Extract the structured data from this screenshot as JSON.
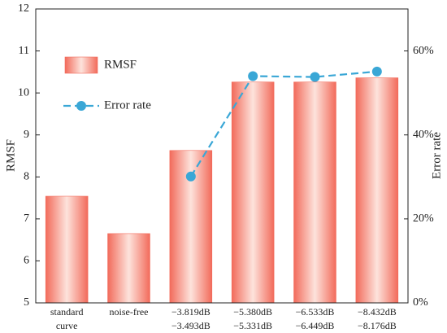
{
  "chart_data": {
    "type": "bar",
    "categories": [
      [
        "standard",
        "curve"
      ],
      [
        "noise-free"
      ],
      [
        "−3.819dB",
        "−3.493dB"
      ],
      [
        "−5.380dB",
        "−5.331dB"
      ],
      [
        "−6.533dB",
        "−6.449dB"
      ],
      [
        "−8.432dB",
        "−8.176dB"
      ]
    ],
    "series": [
      {
        "name": "RMSF",
        "type": "bar",
        "color": "#f26b5b",
        "values": [
          7.54,
          6.65,
          8.63,
          10.26,
          10.26,
          10.36
        ]
      },
      {
        "name": "Error rate",
        "type": "line",
        "axis": "y2",
        "color": "#3aa7d6",
        "values": [
          null,
          null,
          30.1,
          54.0,
          53.8,
          55.1
        ]
      }
    ],
    "ylabel": "RMSF",
    "y2label": "Error rate",
    "ylim": [
      5,
      12
    ],
    "yticks": [
      5,
      6,
      7,
      8,
      9,
      10,
      11,
      12
    ],
    "y2lim": [
      0,
      70
    ],
    "y2ticks": [
      {
        "value": 0,
        "label": "0%"
      },
      {
        "value": 20,
        "label": "20%"
      },
      {
        "value": 40,
        "label": "40%"
      },
      {
        "value": 60,
        "label": "60%"
      }
    ],
    "legend": "upper left"
  }
}
